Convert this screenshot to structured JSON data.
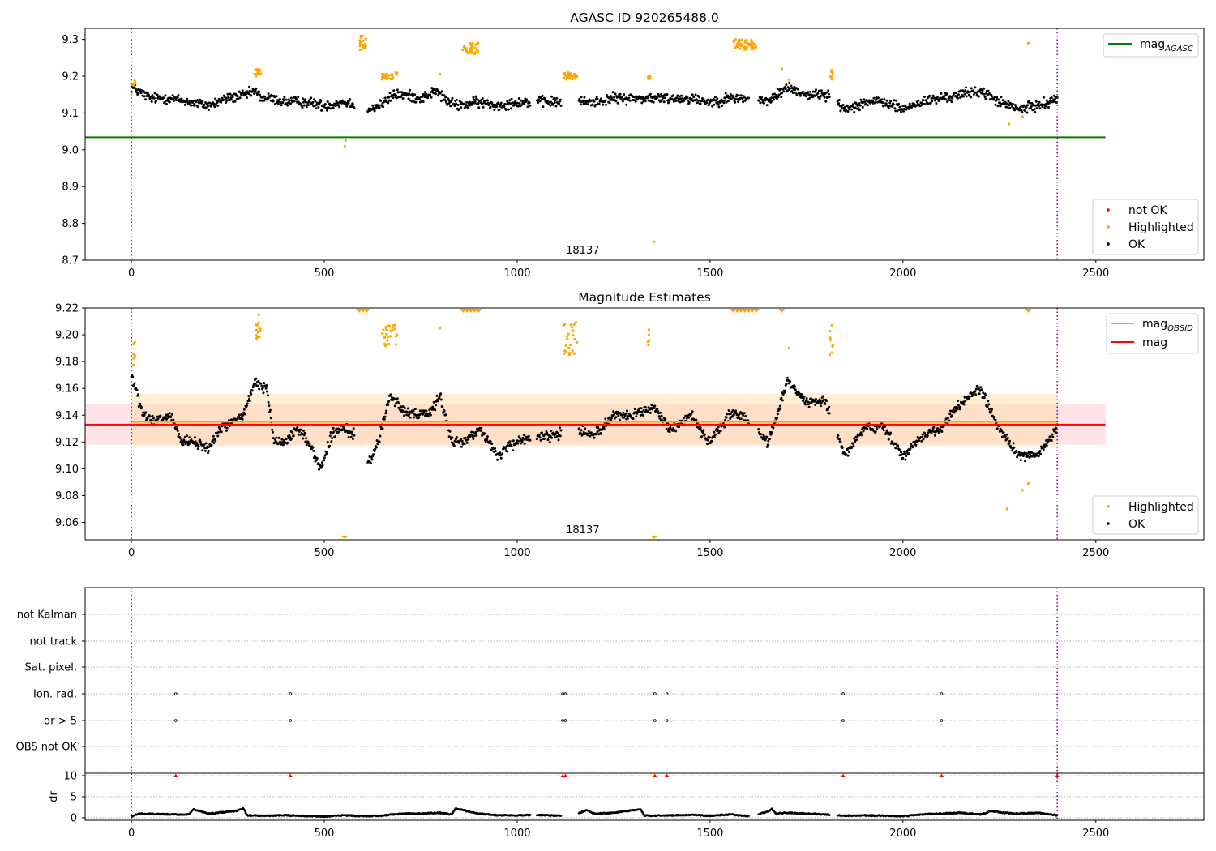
{
  "chart_data": [
    {
      "type": "scatter",
      "title": "AGASC ID 920265488.0",
      "xlim": [
        -120,
        2780
      ],
      "ylim": [
        8.7,
        9.33
      ],
      "xticks": [
        0,
        500,
        1000,
        1500,
        2000,
        2500
      ],
      "yticks": [
        8.7,
        8.8,
        8.9,
        9.0,
        9.1,
        9.2,
        9.3
      ],
      "ytick_labels": [
        "8.7",
        "8.8",
        "8.9",
        "9.0",
        "9.1",
        "9.2",
        "9.3"
      ],
      "obs_boundaries": [
        0,
        2400
      ],
      "obs_label": {
        "text": "18137",
        "x": 1200
      },
      "lines": [
        {
          "name": "mag_AGASC",
          "y": 9.034,
          "x": [
            -120,
            2525
          ],
          "color": "#008000"
        }
      ],
      "legend_lines": [
        {
          "label": "mag",
          "subscript": "AGASC",
          "color": "#008000"
        }
      ],
      "legend_points": [
        {
          "label": "not OK",
          "color": "#ff0000"
        },
        {
          "label": "Highlighted",
          "color": "#ffa500"
        },
        {
          "label": "OK",
          "color": "#000000"
        }
      ],
      "ok_series": {
        "name": "OK",
        "color": "#000000",
        "path": [
          [
            0,
            9.17
          ],
          [
            50,
            9.14
          ],
          [
            100,
            9.14
          ],
          [
            150,
            9.13
          ],
          [
            200,
            9.12
          ],
          [
            250,
            9.14
          ],
          [
            300,
            9.15
          ],
          [
            320,
            9.16
          ],
          [
            340,
            9.14
          ],
          [
            360,
            9.14
          ],
          [
            400,
            9.13
          ],
          [
            450,
            9.13
          ],
          [
            500,
            9.12
          ],
          [
            550,
            9.13
          ],
          [
            600,
            9.12
          ],
          [
            620,
            9.11
          ],
          [
            640,
            9.12
          ],
          [
            660,
            9.13
          ],
          [
            680,
            9.15
          ],
          [
            700,
            9.15
          ],
          [
            750,
            9.14
          ],
          [
            790,
            9.16
          ],
          [
            800,
            9.15
          ],
          [
            820,
            9.13
          ],
          [
            850,
            9.12
          ],
          [
            900,
            9.13
          ],
          [
            950,
            9.12
          ],
          [
            1000,
            9.13
          ],
          [
            1050,
            9.13
          ],
          [
            1100,
            9.13
          ],
          [
            1150,
            9.13
          ],
          [
            1200,
            9.13
          ],
          [
            1250,
            9.14
          ],
          [
            1300,
            9.14
          ],
          [
            1350,
            9.14
          ],
          [
            1400,
            9.14
          ],
          [
            1450,
            9.14
          ],
          [
            1500,
            9.13
          ],
          [
            1550,
            9.14
          ],
          [
            1580,
            9.14
          ],
          [
            1600,
            9.14
          ],
          [
            1650,
            9.13
          ],
          [
            1700,
            9.17
          ],
          [
            1750,
            9.15
          ],
          [
            1800,
            9.15
          ],
          [
            1850,
            9.11
          ],
          [
            1900,
            9.13
          ],
          [
            1950,
            9.13
          ],
          [
            2000,
            9.11
          ],
          [
            2050,
            9.13
          ],
          [
            2100,
            9.14
          ],
          [
            2150,
            9.15
          ],
          [
            2200,
            9.16
          ],
          [
            2250,
            9.13
          ],
          [
            2300,
            9.11
          ],
          [
            2350,
            9.12
          ],
          [
            2400,
            9.14
          ]
        ],
        "gaps": [
          [
            578,
            612
          ],
          [
            1035,
            1050
          ],
          [
            1115,
            1160
          ],
          [
            1600,
            1625
          ],
          [
            1810,
            1830
          ]
        ]
      },
      "highlighted_clusters": [
        {
          "x": [
            0,
            10
          ],
          "y": [
            9.17,
            9.19
          ],
          "n": 6
        },
        {
          "x": [
            318,
            335
          ],
          "y": [
            9.2,
            9.22
          ],
          "n": 14
        },
        {
          "x": [
            590,
            610
          ],
          "y": [
            9.27,
            9.31
          ],
          "n": 20
        },
        {
          "x": [
            645,
            690
          ],
          "y": [
            9.19,
            9.21
          ],
          "n": 25
        },
        {
          "x": [
            858,
            900
          ],
          "y": [
            9.26,
            9.29
          ],
          "n": 35
        },
        {
          "x": [
            1120,
            1155
          ],
          "y": [
            9.19,
            9.21
          ],
          "n": 25
        },
        {
          "x": [
            1338,
            1345
          ],
          "y": [
            9.19,
            9.21
          ],
          "n": 5
        },
        {
          "x": [
            1560,
            1620
          ],
          "y": [
            9.27,
            9.3
          ],
          "n": 45
        },
        {
          "x": [
            1810,
            1820
          ],
          "y": [
            9.19,
            9.22
          ],
          "n": 8
        }
      ],
      "highlighted_points": [
        [
          553,
          9.01
        ],
        [
          555,
          9.025
        ],
        [
          800,
          9.205
        ],
        [
          1686,
          9.22
        ],
        [
          1705,
          9.19
        ],
        [
          2275,
          9.07
        ],
        [
          2325,
          9.29
        ],
        [
          2310,
          9.09
        ],
        [
          1355,
          8.75
        ]
      ]
    },
    {
      "type": "scatter",
      "title": "Magnitude Estimates",
      "xlim": [
        -120,
        2780
      ],
      "ylim": [
        9.047,
        9.22
      ],
      "xticks": [
        0,
        500,
        1000,
        1500,
        2000,
        2500
      ],
      "yticks": [
        9.06,
        9.08,
        9.1,
        9.12,
        9.14,
        9.16,
        9.18,
        9.2,
        9.22
      ],
      "ytick_labels": [
        "9.06",
        "9.08",
        "9.10",
        "9.12",
        "9.14",
        "9.16",
        "9.18",
        "9.20",
        "9.22"
      ],
      "obs_boundaries": [
        0,
        2400
      ],
      "obs_label": {
        "text": "18137",
        "x": 1200
      },
      "bands": [
        {
          "name": "mag",
          "y": [
            9.118,
            9.148
          ],
          "x": [
            -120,
            2525
          ],
          "color": "#ffc0cb",
          "opacity": 0.45
        },
        {
          "name": "mag_OBSID",
          "y": [
            9.117,
            9.156
          ],
          "x": [
            0,
            2400
          ],
          "color": "#ffd9a0",
          "opacity": 0.45
        }
      ],
      "lines": [
        {
          "name": "mag_OBSID",
          "y": 9.135,
          "x": [
            0,
            2400
          ],
          "color": "#ffa500"
        },
        {
          "name": "mag",
          "y": 9.133,
          "x": [
            -120,
            2525
          ],
          "color": "#ff0000"
        }
      ],
      "legend_lines": [
        {
          "label": "mag",
          "subscript": "OBSID",
          "color": "#ffa500"
        },
        {
          "label": "mag",
          "subscript": "",
          "color": "#ff0000"
        }
      ],
      "legend_points": [
        {
          "label": "Highlighted",
          "color": "#ffa500"
        },
        {
          "label": "OK",
          "color": "#000000"
        }
      ],
      "ok_series": {
        "name": "OK",
        "color": "#000000",
        "path": [
          [
            0,
            9.17
          ],
          [
            30,
            9.14
          ],
          [
            60,
            9.135
          ],
          [
            100,
            9.14
          ],
          [
            130,
            9.12
          ],
          [
            160,
            9.12
          ],
          [
            200,
            9.115
          ],
          [
            230,
            9.13
          ],
          [
            260,
            9.135
          ],
          [
            290,
            9.14
          ],
          [
            310,
            9.155
          ],
          [
            320,
            9.165
          ],
          [
            350,
            9.16
          ],
          [
            370,
            9.12
          ],
          [
            400,
            9.12
          ],
          [
            430,
            9.13
          ],
          [
            460,
            9.12
          ],
          [
            490,
            9.1
          ],
          [
            520,
            9.125
          ],
          [
            550,
            9.13
          ],
          [
            580,
            9.125
          ],
          [
            620,
            9.105
          ],
          [
            640,
            9.12
          ],
          [
            670,
            9.155
          ],
          [
            700,
            9.145
          ],
          [
            740,
            9.14
          ],
          [
            770,
            9.14
          ],
          [
            800,
            9.155
          ],
          [
            830,
            9.12
          ],
          [
            860,
            9.12
          ],
          [
            900,
            9.13
          ],
          [
            950,
            9.11
          ],
          [
            1000,
            9.12
          ],
          [
            1050,
            9.125
          ],
          [
            1100,
            9.125
          ],
          [
            1150,
            9.13
          ],
          [
            1200,
            9.125
          ],
          [
            1250,
            9.14
          ],
          [
            1300,
            9.14
          ],
          [
            1350,
            9.145
          ],
          [
            1400,
            9.13
          ],
          [
            1450,
            9.14
          ],
          [
            1500,
            9.12
          ],
          [
            1550,
            9.14
          ],
          [
            1580,
            9.14
          ],
          [
            1600,
            9.135
          ],
          [
            1650,
            9.12
          ],
          [
            1700,
            9.165
          ],
          [
            1750,
            9.15
          ],
          [
            1800,
            9.15
          ],
          [
            1850,
            9.11
          ],
          [
            1900,
            9.13
          ],
          [
            1950,
            9.13
          ],
          [
            2000,
            9.11
          ],
          [
            2050,
            9.125
          ],
          [
            2100,
            9.13
          ],
          [
            2150,
            9.15
          ],
          [
            2200,
            9.16
          ],
          [
            2250,
            9.13
          ],
          [
            2300,
            9.11
          ],
          [
            2350,
            9.11
          ],
          [
            2400,
            9.13
          ]
        ],
        "gaps": [
          [
            578,
            612
          ],
          [
            1035,
            1050
          ],
          [
            1115,
            1160
          ],
          [
            1600,
            1625
          ],
          [
            1810,
            1830
          ]
        ]
      },
      "highlighted_clusters": [
        {
          "x": [
            0,
            10
          ],
          "y": [
            9.175,
            9.195
          ],
          "n": 6
        },
        {
          "x": [
            318,
            335
          ],
          "y": [
            9.195,
            9.215
          ],
          "n": 14
        },
        {
          "x": [
            645,
            690
          ],
          "y": [
            9.19,
            9.21
          ],
          "n": 25
        },
        {
          "x": [
            1120,
            1155
          ],
          "y": [
            9.185,
            9.21
          ],
          "n": 25
        },
        {
          "x": [
            1338,
            1345
          ],
          "y": [
            9.19,
            9.205
          ],
          "n": 5
        },
        {
          "x": [
            1810,
            1820
          ],
          "y": [
            9.185,
            9.21
          ],
          "n": 8
        }
      ],
      "highlighted_points": [
        [
          800,
          9.205
        ],
        [
          1705,
          9.19
        ],
        [
          2270,
          9.07
        ],
        [
          2310,
          9.084
        ],
        [
          2325,
          9.089
        ]
      ],
      "clipped_top": [
        590,
        600,
        610,
        860,
        870,
        880,
        890,
        900,
        1560,
        1570,
        1580,
        1590,
        1600,
        1610,
        1620,
        1686,
        2325
      ],
      "clipped_bottom": [
        553,
        1355
      ]
    },
    {
      "type": "scatter",
      "title": "",
      "xlim": [
        -120,
        2780
      ],
      "xticks": [
        0,
        500,
        1000,
        1500,
        2000,
        2500
      ],
      "obs_boundaries": [
        0,
        2400
      ],
      "flag_rows": [
        "not Kalman",
        "not track",
        "Sat. pixel.",
        "Ion. rad.",
        "dr > 5",
        "OBS not OK"
      ],
      "flag_points": {
        "Ion. rad.": [
          115,
          412,
          1118,
          1125,
          1357,
          1388,
          1845,
          2100
        ],
        "dr > 5": [
          115,
          412,
          1118,
          1125,
          1357,
          1388,
          1845,
          2100
        ]
      },
      "dr": {
        "ylabel": "dr",
        "ylim": [
          0,
          10
        ],
        "yticks": [
          0,
          5,
          10
        ],
        "ytick_labels": [
          "0",
          "5",
          "10"
        ],
        "series_color": "#000000",
        "path": [
          [
            0,
            0.3
          ],
          [
            20,
            1
          ],
          [
            100,
            0.8
          ],
          [
            150,
            0.8
          ],
          [
            160,
            2
          ],
          [
            200,
            1
          ],
          [
            270,
            1.6
          ],
          [
            290,
            2.2
          ],
          [
            300,
            0.6
          ],
          [
            350,
            0.5
          ],
          [
            400,
            0.6
          ],
          [
            450,
            0.5
          ],
          [
            500,
            0.3
          ],
          [
            550,
            0.6
          ],
          [
            600,
            0.4
          ],
          [
            650,
            0.5
          ],
          [
            700,
            1
          ],
          [
            750,
            1
          ],
          [
            800,
            1.2
          ],
          [
            830,
            0.8
          ],
          [
            840,
            2.2
          ],
          [
            900,
            1
          ],
          [
            950,
            0.6
          ],
          [
            1000,
            0.6
          ],
          [
            1050,
            0.7
          ],
          [
            1100,
            0.5
          ],
          [
            1150,
            0.8
          ],
          [
            1180,
            1.8
          ],
          [
            1200,
            1
          ],
          [
            1250,
            1.2
          ],
          [
            1300,
            1.8
          ],
          [
            1320,
            2
          ],
          [
            1330,
            0.5
          ],
          [
            1400,
            0.6
          ],
          [
            1450,
            0.7
          ],
          [
            1500,
            0.5
          ],
          [
            1550,
            0.8
          ],
          [
            1600,
            0.4
          ],
          [
            1650,
            1.4
          ],
          [
            1660,
            2.2
          ],
          [
            1670,
            1
          ],
          [
            1700,
            1.2
          ],
          [
            1750,
            1
          ],
          [
            1800,
            0.8
          ],
          [
            1850,
            0.5
          ],
          [
            1900,
            0.6
          ],
          [
            1950,
            0.5
          ],
          [
            2000,
            0.4
          ],
          [
            2050,
            0.8
          ],
          [
            2100,
            1
          ],
          [
            2150,
            1.2
          ],
          [
            2200,
            0.8
          ],
          [
            2230,
            1.6
          ],
          [
            2260,
            1.2
          ],
          [
            2300,
            1
          ],
          [
            2350,
            1.2
          ],
          [
            2400,
            0.6
          ]
        ],
        "gaps": [
          [
            1035,
            1050
          ],
          [
            1115,
            1160
          ],
          [
            1600,
            1625
          ],
          [
            1810,
            1830
          ]
        ],
        "triangles": [
          115,
          412,
          1118,
          1125,
          1357,
          1388,
          1845,
          2100,
          2400
        ]
      }
    }
  ]
}
